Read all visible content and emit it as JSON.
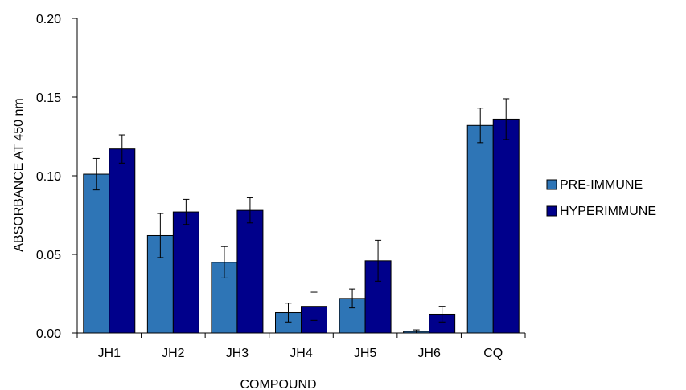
{
  "chart_data": {
    "type": "bar",
    "title": "",
    "xlabel": "COMPOUND",
    "ylabel": "ABSORBANCE  AT 450 nm",
    "ylim": [
      0,
      0.2
    ],
    "yticks": [
      "0.00",
      "0.05",
      "0.10",
      "0.15",
      "0.20"
    ],
    "grid": false,
    "legend_position": "right",
    "categories": [
      "JH1",
      "JH2",
      "JH3",
      "JH4",
      "JH5",
      "JH6",
      "CQ"
    ],
    "series": [
      {
        "name": "PRE-IMMUNE",
        "color": "#2e75b6",
        "values": [
          0.101,
          0.062,
          0.045,
          0.013,
          0.022,
          0.001,
          0.132
        ],
        "errors": [
          0.01,
          0.014,
          0.01,
          0.006,
          0.006,
          0.001,
          0.011
        ]
      },
      {
        "name": "HYPERIMMUNE",
        "color": "#00008b",
        "values": [
          0.117,
          0.077,
          0.078,
          0.017,
          0.046,
          0.012,
          0.136
        ],
        "errors": [
          0.009,
          0.008,
          0.008,
          0.009,
          0.013,
          0.005,
          0.013
        ]
      }
    ]
  }
}
